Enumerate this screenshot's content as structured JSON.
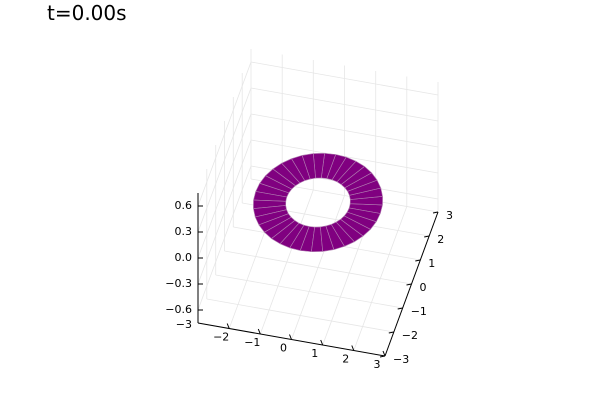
{
  "chart_data": {
    "type": "surface3d",
    "title": "t=0.00s",
    "xlim": [
      -3,
      3
    ],
    "ylim": [
      -3,
      3
    ],
    "zlim": [
      -0.75,
      0.75
    ],
    "x_ticks": [
      -2,
      -1,
      0,
      1,
      2,
      3
    ],
    "x_tick_labels": [
      "−2",
      "−1",
      "0",
      "1",
      "2",
      "3"
    ],
    "y_ticks": [
      -3,
      -2,
      -1,
      0,
      1,
      2,
      3
    ],
    "y_tick_labels": [
      "−3",
      "−2",
      "−1",
      "0",
      "1",
      "2",
      "3"
    ],
    "z_ticks": [
      -0.6,
      -0.3,
      0.0,
      0.3,
      0.6
    ],
    "z_tick_labels": [
      "−0.6",
      "−0.3",
      "0.0",
      "0.3",
      "0.6"
    ],
    "corner_tick_label": "−3",
    "grid": true,
    "surface": {
      "shape": "annulus",
      "inner_radius": 1.0,
      "outer_radius": 2.0,
      "z": 0.0,
      "angular_segments": 36,
      "fill_color": "#800080",
      "edge_color": "#b27fb2"
    }
  }
}
